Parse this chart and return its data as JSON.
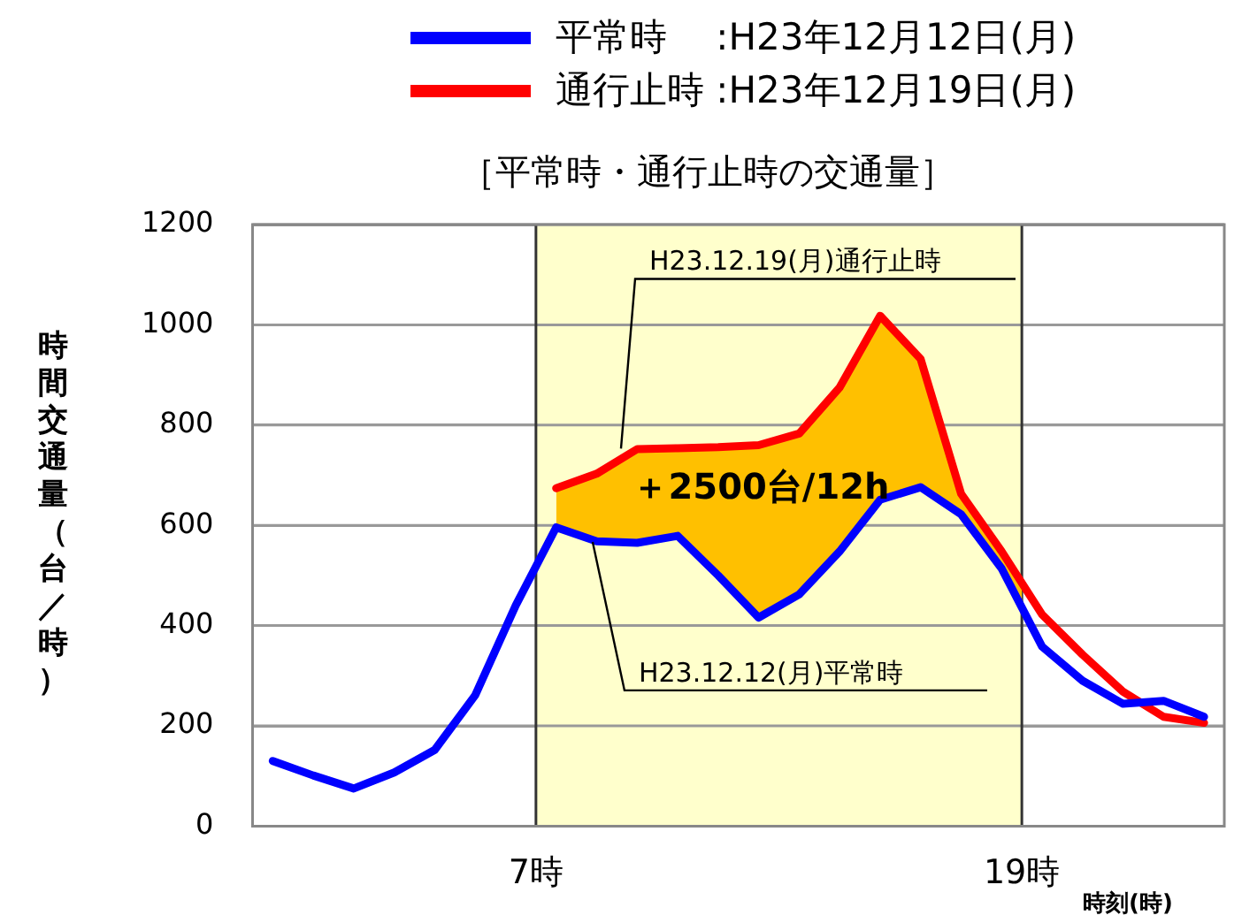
{
  "chart_data": {
    "type": "line",
    "title": "［平常時・通行止時の交通量］",
    "xlabel": "時刻(時)",
    "ylabel": "時間交通量（台／時）",
    "x": [
      0.5,
      1.5,
      2.5,
      3.5,
      4.5,
      5.5,
      6.5,
      7.5,
      8.5,
      9.5,
      10.5,
      11.5,
      12.5,
      13.5,
      14.5,
      15.5,
      16.5,
      17.5,
      18.5,
      19.5,
      20.5,
      21.5,
      22.5,
      23.5
    ],
    "series": [
      {
        "name": "平常時　 :H23年12月12日(月)",
        "color": "#0000ff",
        "values": [
          130,
          101,
          75,
          107,
          152,
          261,
          440,
          596,
          568,
          565,
          579,
          500,
          416,
          462,
          548,
          651,
          676,
          622,
          514,
          358,
          290,
          244,
          250,
          218
        ]
      },
      {
        "name": "通行止時 :H23年12月19日(月)",
        "color": "#ff0000",
        "values": [
          null,
          null,
          null,
          null,
          null,
          null,
          null,
          674,
          703,
          752,
          754,
          756,
          760,
          783,
          875,
          1018,
          932,
          663,
          548,
          422,
          342,
          268,
          218,
          206
        ]
      }
    ],
    "xlim": [
      0,
      24
    ],
    "xticks": [
      {
        "value": 7,
        "label": "7時"
      },
      {
        "value": 19,
        "label": "19時"
      }
    ],
    "ylim": [
      0,
      1200
    ],
    "yticks": [
      0,
      200,
      400,
      600,
      800,
      1000,
      1200
    ],
    "bands": [
      {
        "axis": "x",
        "from": 7,
        "to": 19,
        "color": "#ffffcc"
      }
    ],
    "annotations": [
      {
        "text": "H23.12.19(月)通行止時",
        "x": 9.1,
        "y": 753
      },
      {
        "text": "H23.12.12(月)平常時",
        "x": 8.4,
        "y": 567
      },
      "＋2500台/12h"
    ],
    "grid": true,
    "legend": "top"
  }
}
